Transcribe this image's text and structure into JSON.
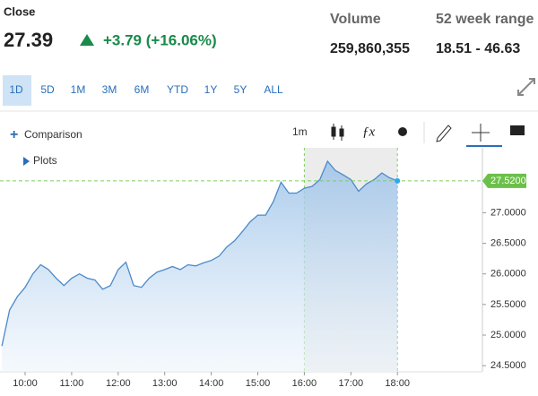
{
  "header": {
    "label": "Close",
    "price": "27.39",
    "change": "+3.79 (+16.06%)",
    "volume_label": "Volume",
    "volume": "259,860,355",
    "range_label": "52 week range",
    "range": "18.51 - 46.63"
  },
  "ranges": [
    "1D",
    "5D",
    "1M",
    "3M",
    "6M",
    "YTD",
    "1Y",
    "5Y",
    "ALL"
  ],
  "toolbar": {
    "comparison": "Comparison",
    "interval": "1m",
    "plots": "Plots"
  },
  "chart_data": {
    "type": "area-line",
    "color": "#4a8ac9",
    "x": [
      "09:30",
      "09:40",
      "09:50",
      "10:00",
      "10:10",
      "10:20",
      "10:30",
      "10:40",
      "10:50",
      "11:00",
      "11:10",
      "11:20",
      "11:30",
      "11:40",
      "11:50",
      "12:00",
      "12:10",
      "12:20",
      "12:30",
      "12:40",
      "12:50",
      "13:00",
      "13:10",
      "13:20",
      "13:30",
      "13:40",
      "13:50",
      "14:00",
      "14:10",
      "14:20",
      "14:30",
      "14:40",
      "14:50",
      "15:00",
      "15:10",
      "15:20",
      "15:30",
      "15:40",
      "15:50",
      "16:00",
      "16:10",
      "16:20",
      "16:30",
      "16:40",
      "16:50",
      "17:00",
      "17:10",
      "17:20",
      "17:30",
      "17:40",
      "17:50",
      "18:00"
    ],
    "values": [
      24.82,
      25.41,
      25.63,
      25.78,
      26.0,
      26.15,
      26.07,
      25.93,
      25.81,
      25.93,
      26.0,
      25.93,
      25.9,
      25.75,
      25.81,
      26.07,
      26.19,
      25.81,
      25.78,
      25.93,
      26.03,
      26.07,
      26.12,
      26.07,
      26.15,
      26.13,
      26.18,
      26.22,
      26.29,
      26.44,
      26.54,
      26.69,
      26.85,
      26.96,
      26.96,
      27.18,
      27.5,
      27.32,
      27.32,
      27.4,
      27.43,
      27.54,
      27.84,
      27.69,
      27.62,
      27.54,
      27.35,
      27.47,
      27.54,
      27.65,
      27.57,
      27.52
    ],
    "ylim": [
      24.4,
      28.06
    ],
    "yticks": [
      {
        "value": 24.5,
        "label": "24.5000"
      },
      {
        "value": 25,
        "label": "25.0000"
      },
      {
        "value": 25.5,
        "label": "25.5000"
      },
      {
        "value": 26,
        "label": "26.0000"
      },
      {
        "value": 26.5,
        "label": "26.5000"
      },
      {
        "value": 27,
        "label": "27.0000"
      }
    ],
    "xticks": [
      "10:00",
      "11:00",
      "12:00",
      "13:00",
      "14:00",
      "15:00",
      "16:00",
      "17:00",
      "18:00"
    ],
    "last_price": {
      "value": 27.52,
      "label": "27.5200"
    },
    "shaded": [
      "16:00",
      "18:00"
    ]
  }
}
